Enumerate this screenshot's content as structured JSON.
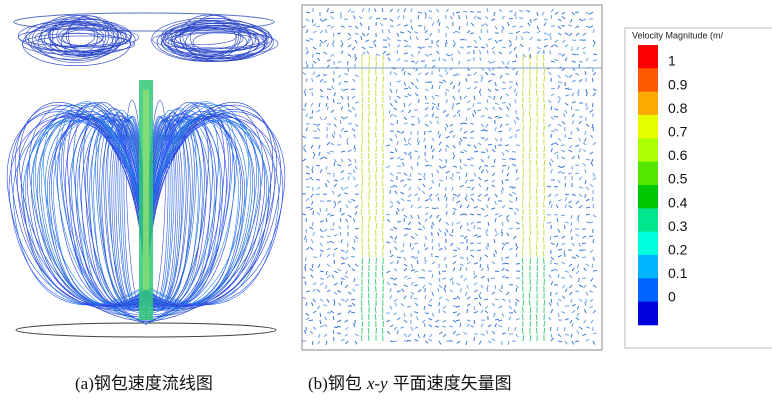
{
  "figures": [
    {
      "caption": {
        "label": "(a)钢包速度流线图"
      }
    },
    {
      "caption": {
        "label": "(b)钢包",
        "variable": "x-y",
        "text": "平面速度矢量图"
      }
    }
  ],
  "legend": {
    "title": "Velocity Magnitude (m/",
    "ticks": [
      1,
      0.9,
      0.8,
      0.7,
      0.6,
      0.5,
      0.4,
      0.3,
      0.2,
      0.1,
      0
    ],
    "colors": [
      "#ff0000",
      "#ff5a00",
      "#ffaa00",
      "#e6ff00",
      "#aaff00",
      "#55e600",
      "#00c800",
      "#00e68c",
      "#00ffdc",
      "#00b4ff",
      "#0064ff",
      "#0000dc"
    ]
  }
}
